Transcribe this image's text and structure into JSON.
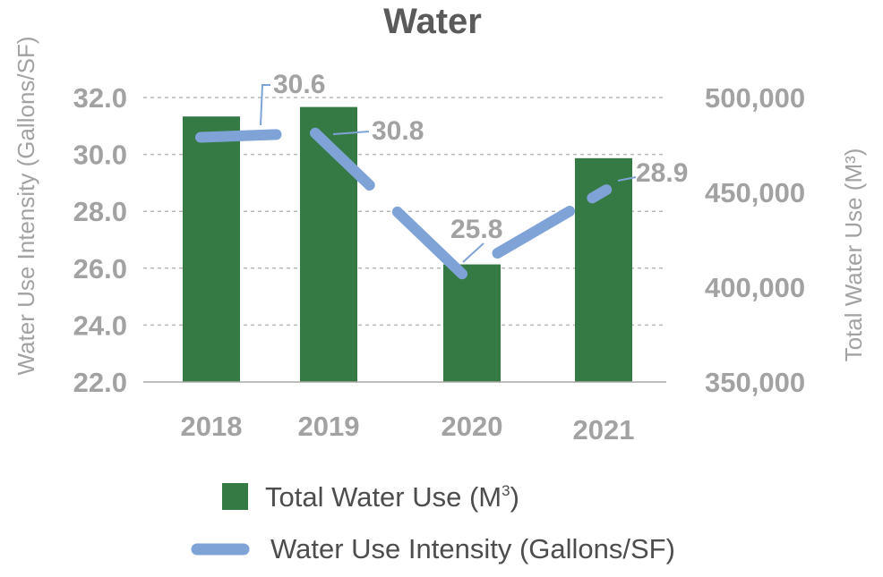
{
  "chart_data": {
    "type": "bar",
    "title": "Water",
    "categories": [
      "2018",
      "2019",
      "2020",
      "2021"
    ],
    "ylabel_left": "Water Use Intensity (Gallons/SF)",
    "ylabel_right": "Total Water Use (M³)",
    "ylim_left": [
      22.0,
      32.0
    ],
    "ylim_right": [
      350000,
      500000
    ],
    "yticks_left": [
      "22.0",
      "24.0",
      "26.0",
      "28.0",
      "30.0",
      "32.0"
    ],
    "yticks_right": [
      "350,000",
      "400,000",
      "450,000",
      "500,000"
    ],
    "grid": true,
    "legend_position": "bottom",
    "series": [
      {
        "name": "Total Water Use (M³)",
        "type": "bar",
        "axis": "right",
        "color": "#357a45",
        "values": [
          490000,
          495000,
          412000,
          468000
        ]
      },
      {
        "name": "Water Use Intensity (Gallons/SF)",
        "type": "line",
        "axis": "left",
        "color": "#7fa3d6",
        "values": [
          30.6,
          30.8,
          25.8,
          28.9
        ],
        "labels": [
          "30.6",
          "30.8",
          "25.8",
          "28.9"
        ]
      }
    ],
    "legend": {
      "bar_label": "Total Water Use (M",
      "bar_label_sup": "3",
      "bar_label_end": ")",
      "line_label": "Water Use Intensity (Gallons/SF)"
    }
  }
}
